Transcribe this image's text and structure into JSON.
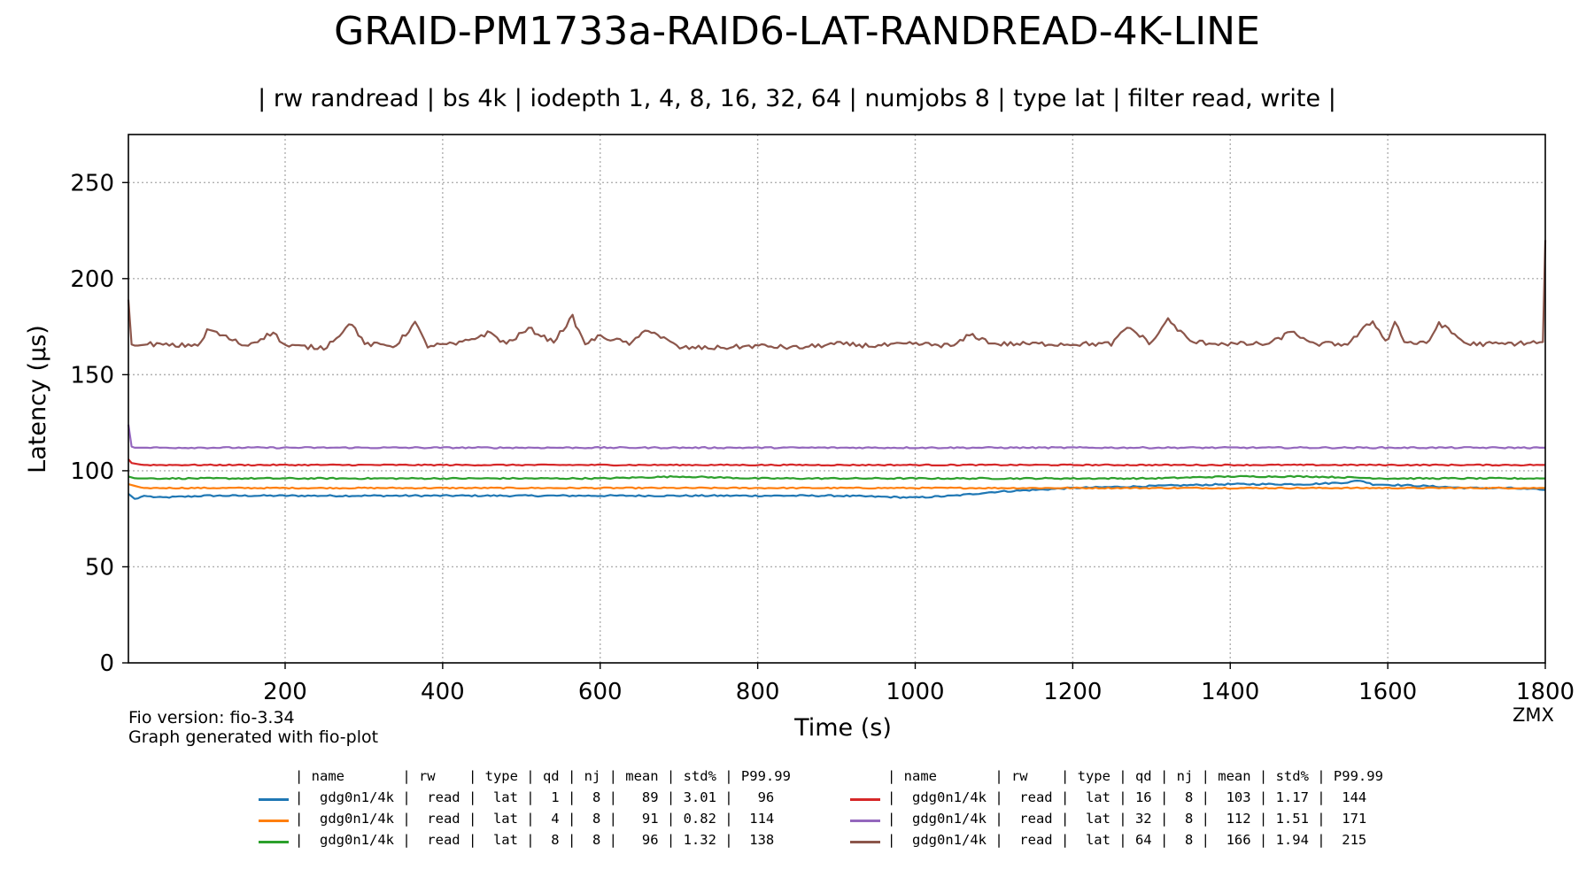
{
  "chart_data": {
    "type": "line",
    "title": "GRAID-PM1733a-RAID6-LAT-RANDREAD-4K-LINE",
    "subtitle": "| rw randread | bs 4k | iodepth 1, 4, 8, 16, 32, 64 | numjobs 8 | type lat | filter read, write |",
    "xlabel": "Time (s)",
    "ylabel": "Latency (µs)",
    "xlim": [
      1,
      1800
    ],
    "ylim": [
      0,
      275
    ],
    "xticks": [
      "200",
      "400",
      "600",
      "800",
      "1000",
      "1200",
      "1400",
      "1600",
      "1800"
    ],
    "yticks": [
      "0",
      "50",
      "100",
      "150",
      "200",
      "250"
    ],
    "grid": true,
    "legend_position": "bottom",
    "series": [
      {
        "color": "#1f77b4",
        "x": [
          1,
          10,
          20,
          40,
          100,
          200,
          300,
          400,
          500,
          600,
          700,
          800,
          900,
          1000,
          1050,
          1100,
          1150,
          1200,
          1300,
          1400,
          1500,
          1550,
          1565,
          1580,
          1650,
          1700,
          1750,
          1800
        ],
        "y": [
          88,
          85,
          87,
          86,
          87,
          87,
          87,
          87,
          87,
          87,
          87,
          87,
          87,
          86,
          87,
          89,
          90,
          91,
          92,
          93,
          93,
          94,
          95,
          93,
          92,
          91,
          91,
          90
        ]
      },
      {
        "color": "#ff7f0e",
        "x": [
          1,
          10,
          20,
          50,
          100,
          200,
          300,
          400,
          500,
          600,
          700,
          800,
          900,
          1000,
          1100,
          1200,
          1300,
          1400,
          1500,
          1600,
          1700,
          1800
        ],
        "y": [
          93,
          92,
          91,
          91,
          91,
          91,
          91,
          91,
          91,
          91,
          91,
          91,
          91,
          91,
          91,
          91,
          91,
          91,
          91,
          91,
          91,
          91
        ]
      },
      {
        "color": "#2ca02c",
        "x": [
          1,
          10,
          20,
          50,
          100,
          200,
          300,
          400,
          500,
          600,
          700,
          800,
          900,
          1000,
          1100,
          1200,
          1300,
          1400,
          1500,
          1600,
          1700,
          1800
        ],
        "y": [
          97,
          96,
          96,
          96,
          96,
          96,
          96,
          96,
          96,
          96,
          97,
          96,
          96,
          96,
          96,
          96,
          96,
          97,
          97,
          96,
          96,
          96
        ]
      },
      {
        "color": "#d62728",
        "x": [
          1,
          5,
          20,
          50,
          100,
          200,
          300,
          400,
          500,
          600,
          700,
          800,
          900,
          1000,
          1100,
          1200,
          1300,
          1400,
          1500,
          1600,
          1700,
          1800
        ],
        "y": [
          106,
          104,
          103,
          103,
          103,
          103,
          103,
          103,
          103,
          103,
          103,
          103,
          103,
          103,
          103,
          103,
          103,
          103,
          103,
          103,
          103,
          103
        ]
      },
      {
        "color": "#9467bd",
        "x": [
          1,
          3,
          8,
          20,
          50,
          100,
          200,
          300,
          400,
          500,
          600,
          700,
          800,
          900,
          1000,
          1100,
          1200,
          1300,
          1400,
          1500,
          1600,
          1700,
          1800
        ],
        "y": [
          124,
          113,
          112,
          112,
          112,
          112,
          112,
          112,
          112,
          112,
          112,
          112,
          112,
          112,
          112,
          112,
          112,
          112,
          112,
          112,
          112,
          112,
          112
        ]
      },
      {
        "color": "#8c564b",
        "x": [
          1,
          3,
          10,
          30,
          60,
          95,
          100,
          150,
          185,
          200,
          250,
          285,
          300,
          340,
          365,
          380,
          420,
          460,
          480,
          510,
          540,
          565,
          580,
          600,
          640,
          660,
          700,
          750,
          800,
          850,
          900,
          950,
          1000,
          1050,
          1070,
          1100,
          1150,
          1200,
          1250,
          1270,
          1300,
          1320,
          1350,
          1400,
          1450,
          1480,
          1500,
          1550,
          1580,
          1600,
          1610,
          1620,
          1650,
          1665,
          1700,
          1750,
          1798,
          1800
        ],
        "y": [
          189,
          166,
          165,
          166,
          165,
          166,
          174,
          165,
          172,
          165,
          164,
          177,
          166,
          165,
          177,
          165,
          166,
          172,
          166,
          174,
          167,
          180,
          166,
          170,
          166,
          174,
          164,
          164,
          165,
          164,
          166,
          165,
          166,
          165,
          171,
          166,
          166,
          166,
          166,
          175,
          166,
          179,
          167,
          166,
          166,
          173,
          166,
          166,
          178,
          167,
          179,
          167,
          166,
          177,
          166,
          166,
          167,
          220
        ]
      }
    ],
    "legend": {
      "headers": [
        "| name       | rw    | type | qd | nj | mean | std% | P99.99",
        "| name       | rw    | type | qd | nj | mean | std% | P99.99"
      ],
      "rows": [
        "|  gdg0n1/4k |  read |  lat |  1 |  8 |   89 | 3.01 |   96",
        "|  gdg0n1/4k |  read |  lat |  4 |  8 |   91 | 0.82 |  114",
        "|  gdg0n1/4k |  read |  lat |  8 |  8 |   96 | 1.32 |  138",
        "|  gdg0n1/4k |  read |  lat | 16 |  8 |  103 | 1.17 |  144",
        "|  gdg0n1/4k |  read |  lat | 32 |  8 |  112 | 1.51 |  171",
        "|  gdg0n1/4k |  read |  lat | 64 |  8 |  166 | 1.94 |  215"
      ]
    }
  },
  "footer": {
    "fio_version": "Fio version: fio-3.34",
    "generated_by": "Graph generated with fio-plot",
    "watermark": "ZMX"
  }
}
